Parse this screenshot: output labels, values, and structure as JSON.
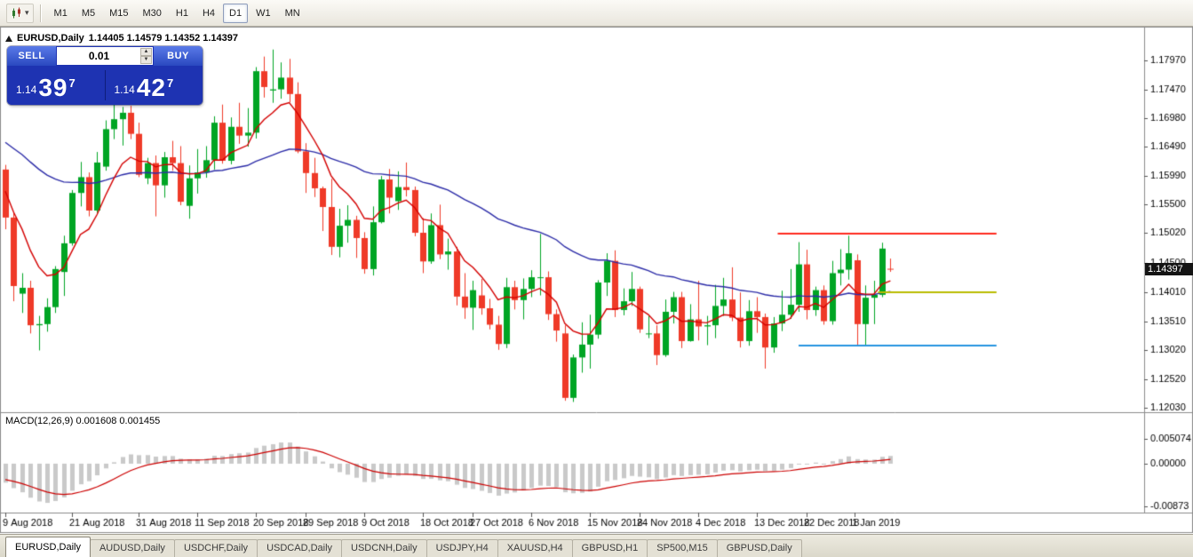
{
  "toolbar": {
    "timeframes": [
      "M1",
      "M5",
      "M15",
      "M30",
      "H1",
      "H4",
      "D1",
      "W1",
      "MN"
    ],
    "active_timeframe": "D1",
    "chart_type_icon": "candlestick-chart",
    "dropdown_icon": "chevron-down"
  },
  "chart_header": {
    "symbol_period": "EURUSD,Daily",
    "ohlc": "1.14405 1.14579 1.14352 1.14397"
  },
  "one_click": {
    "sell_label": "SELL",
    "buy_label": "BUY",
    "volume": "0.01",
    "bid": {
      "small": "1.14",
      "big": "39",
      "sup": "7"
    },
    "ask": {
      "small": "1.14",
      "big": "42",
      "sup": "7"
    }
  },
  "price_axis": {
    "labels": [
      "1.17970",
      "1.17470",
      "1.16980",
      "1.16490",
      "1.15990",
      "1.15500",
      "1.15020",
      "1.14500",
      "1.14010",
      "1.13510",
      "1.13020",
      "1.12520",
      "1.12030"
    ],
    "current_price": "1.14397"
  },
  "macd_panel": {
    "label": "MACD(12,26,9) 0.001608 0.001455",
    "axis_labels": [
      "0.005074",
      "0.00000",
      "-0.00873"
    ]
  },
  "time_axis": {
    "labels": [
      {
        "text": "9 Aug 2018",
        "bar": 0
      },
      {
        "text": "21 Aug 2018",
        "bar": 8
      },
      {
        "text": "31 Aug 2018",
        "bar": 16
      },
      {
        "text": "11 Sep 2018",
        "bar": 23
      },
      {
        "text": "20 Sep 2018",
        "bar": 30
      },
      {
        "text": "29 Sep 2018",
        "bar": 36
      },
      {
        "text": "9 Oct 2018",
        "bar": 43
      },
      {
        "text": "18 Oct 2018",
        "bar": 50
      },
      {
        "text": "27 Oct 2018",
        "bar": 56
      },
      {
        "text": "6 Nov 2018",
        "bar": 63
      },
      {
        "text": "15 Nov 2018",
        "bar": 70
      },
      {
        "text": "24 Nov 2018",
        "bar": 76
      },
      {
        "text": "4 Dec 2018",
        "bar": 83
      },
      {
        "text": "13 Dec 2018",
        "bar": 90
      },
      {
        "text": "22 Dec 2018",
        "bar": 96
      },
      {
        "text": "1 Jan 2019",
        "bar": 101.7
      }
    ]
  },
  "tab_bar": {
    "tabs": [
      "EURUSD,Daily",
      "AUDUSD,Daily",
      "USDCHF,Daily",
      "USDCAD,Daily",
      "USDCNH,Daily",
      "USDJPY,H4",
      "XAUUSD,H4",
      "GBPUSD,H1",
      "SP500,M15",
      "GBPUSD,Daily"
    ],
    "active_index": 0
  },
  "chart_data": {
    "type": "candlestick",
    "symbol": "EURUSD",
    "timeframe": "Daily",
    "last_ohlc": {
      "open": 1.14405,
      "high": 1.14579,
      "low": 1.14352,
      "close": 1.14397
    },
    "y_range": {
      "top": 1.1845,
      "bottom": 1.1197
    },
    "macd_range": {
      "max": 0.005074,
      "min": -0.00873
    },
    "macd_params": [
      12,
      26,
      9
    ],
    "colors": {
      "bull": "#00A524",
      "bear": "#EF3A28",
      "ma_fast": "#D40000",
      "ma_slow": "#2C2CA8",
      "histogram": "#C9C9C9",
      "signal": "#CC0000",
      "axis_text": "#000000",
      "frame": "#8C8C8C"
    },
    "overlays": {
      "ma_fast_period": 8,
      "ma_slow_period": 45,
      "hlines": [
        {
          "price": 1.15,
          "bar_start": 92.5,
          "bar_end": 118.7,
          "color": "#FF2A1E"
        },
        {
          "price": 1.1401,
          "bar_start": 104.5,
          "bar_end": 118.7,
          "color": "#B9BB00"
        },
        {
          "price": 1.131,
          "bar_start": 95.0,
          "bar_end": 118.7,
          "color": "#2694E0"
        }
      ]
    },
    "candles": [
      [
        1.161,
        1.1618,
        1.1508,
        1.1528
      ],
      [
        1.1528,
        1.1537,
        1.1385,
        1.1411
      ],
      [
        1.1398,
        1.1433,
        1.1365,
        1.1408
      ],
      [
        1.1408,
        1.142,
        1.133,
        1.1344
      ],
      [
        1.1344,
        1.136,
        1.1301,
        1.1346
      ],
      [
        1.1346,
        1.139,
        1.1333,
        1.1375
      ],
      [
        1.1375,
        1.1445,
        1.1365,
        1.144
      ],
      [
        1.1435,
        1.1497,
        1.1394,
        1.1484
      ],
      [
        1.1484,
        1.1575,
        1.148,
        1.157
      ],
      [
        1.157,
        1.1623,
        1.1547,
        1.1597
      ],
      [
        1.1597,
        1.1605,
        1.153,
        1.154
      ],
      [
        1.154,
        1.164,
        1.1536,
        1.1622
      ],
      [
        1.1615,
        1.1694,
        1.1608,
        1.1679
      ],
      [
        1.1679,
        1.1734,
        1.1662,
        1.1696
      ],
      [
        1.1696,
        1.1717,
        1.1651,
        1.1707
      ],
      [
        1.1707,
        1.1719,
        1.1662,
        1.1671
      ],
      [
        1.1671,
        1.169,
        1.1597,
        1.1601
      ],
      [
        1.1595,
        1.163,
        1.1585,
        1.1621
      ],
      [
        1.1621,
        1.1634,
        1.153,
        1.1583
      ],
      [
        1.1583,
        1.164,
        1.1562,
        1.1631
      ],
      [
        1.1631,
        1.1659,
        1.1608,
        1.1621
      ],
      [
        1.1621,
        1.165,
        1.1549,
        1.1555
      ],
      [
        1.1548,
        1.1617,
        1.1526,
        1.1595
      ],
      [
        1.1595,
        1.1645,
        1.1569,
        1.1605
      ],
      [
        1.1605,
        1.165,
        1.1596,
        1.1626
      ],
      [
        1.1626,
        1.1701,
        1.161,
        1.169
      ],
      [
        1.169,
        1.1721,
        1.162,
        1.1625
      ],
      [
        1.1625,
        1.1699,
        1.1619,
        1.1683
      ],
      [
        1.1683,
        1.1724,
        1.1654,
        1.1668
      ],
      [
        1.1668,
        1.1715,
        1.1649,
        1.1673
      ],
      [
        1.1673,
        1.1785,
        1.1663,
        1.1778
      ],
      [
        1.1778,
        1.1803,
        1.1733,
        1.1751
      ],
      [
        1.1745,
        1.1815,
        1.1724,
        1.1747
      ],
      [
        1.1747,
        1.1793,
        1.1731,
        1.1767
      ],
      [
        1.1767,
        1.1799,
        1.1725,
        1.1739
      ],
      [
        1.1739,
        1.1759,
        1.1638,
        1.1641
      ],
      [
        1.1641,
        1.1655,
        1.157,
        1.1604
      ],
      [
        1.1604,
        1.163,
        1.1563,
        1.1578
      ],
      [
        1.1578,
        1.1581,
        1.1505,
        1.1546
      ],
      [
        1.1546,
        1.1594,
        1.1464,
        1.1478
      ],
      [
        1.1478,
        1.1543,
        1.146,
        1.1514
      ],
      [
        1.1514,
        1.1549,
        1.1485,
        1.1524
      ],
      [
        1.1524,
        1.1531,
        1.1459,
        1.1493
      ],
      [
        1.1493,
        1.1503,
        1.1432,
        1.144
      ],
      [
        1.144,
        1.1547,
        1.1429,
        1.152
      ],
      [
        1.152,
        1.1599,
        1.1518,
        1.1593
      ],
      [
        1.1593,
        1.1611,
        1.1535,
        1.1562
      ],
      [
        1.1556,
        1.1607,
        1.1541,
        1.158
      ],
      [
        1.158,
        1.1622,
        1.1564,
        1.1575
      ],
      [
        1.1575,
        1.1581,
        1.1496,
        1.1502
      ],
      [
        1.1502,
        1.1527,
        1.1433,
        1.1453
      ],
      [
        1.1453,
        1.1535,
        1.1449,
        1.1515
      ],
      [
        1.1515,
        1.155,
        1.1457,
        1.1465
      ],
      [
        1.1465,
        1.1492,
        1.1439,
        1.147
      ],
      [
        1.147,
        1.1478,
        1.1378,
        1.1393
      ],
      [
        1.1393,
        1.1433,
        1.1355,
        1.1374
      ],
      [
        1.1374,
        1.142,
        1.1336,
        1.1404
      ],
      [
        1.1395,
        1.1423,
        1.1362,
        1.1373
      ],
      [
        1.1373,
        1.1389,
        1.1337,
        1.1345
      ],
      [
        1.1345,
        1.136,
        1.1302,
        1.1312
      ],
      [
        1.1312,
        1.1425,
        1.1305,
        1.1409
      ],
      [
        1.1409,
        1.142,
        1.1371,
        1.1387
      ],
      [
        1.1387,
        1.1424,
        1.1354,
        1.1406
      ],
      [
        1.1406,
        1.1438,
        1.1392,
        1.1426
      ],
      [
        1.1426,
        1.15,
        1.1395,
        1.1426
      ],
      [
        1.1426,
        1.1436,
        1.1353,
        1.1363
      ],
      [
        1.1363,
        1.1371,
        1.1316,
        1.1335
      ],
      [
        1.133,
        1.1344,
        1.1215,
        1.122
      ],
      [
        1.122,
        1.1294,
        1.1213,
        1.1289
      ],
      [
        1.1289,
        1.1349,
        1.1263,
        1.1311
      ],
      [
        1.1311,
        1.1362,
        1.127,
        1.1328
      ],
      [
        1.1328,
        1.1421,
        1.1321,
        1.1417
      ],
      [
        1.1417,
        1.1467,
        1.1394,
        1.1454
      ],
      [
        1.1454,
        1.1472,
        1.1358,
        1.137
      ],
      [
        1.137,
        1.1407,
        1.1361,
        1.1385
      ],
      [
        1.1385,
        1.1435,
        1.1377,
        1.1406
      ],
      [
        1.1406,
        1.141,
        1.1331,
        1.1337
      ],
      [
        1.133,
        1.136,
        1.1322,
        1.133
      ],
      [
        1.133,
        1.1344,
        1.1276,
        1.1293
      ],
      [
        1.1293,
        1.1388,
        1.129,
        1.1367
      ],
      [
        1.1367,
        1.1401,
        1.1347,
        1.1392
      ],
      [
        1.1392,
        1.1401,
        1.1305,
        1.1317
      ],
      [
        1.1317,
        1.138,
        1.1316,
        1.1354
      ],
      [
        1.1354,
        1.142,
        1.1318,
        1.1342
      ],
      [
        1.1342,
        1.136,
        1.131,
        1.1344
      ],
      [
        1.1344,
        1.1413,
        1.1322,
        1.1377
      ],
      [
        1.1377,
        1.1425,
        1.136,
        1.1388
      ],
      [
        1.1388,
        1.1443,
        1.1351,
        1.1357
      ],
      [
        1.1357,
        1.14,
        1.1306,
        1.1317
      ],
      [
        1.1317,
        1.1387,
        1.1309,
        1.1368
      ],
      [
        1.1368,
        1.1392,
        1.1331,
        1.1358
      ],
      [
        1.1358,
        1.1364,
        1.127,
        1.1306
      ],
      [
        1.1306,
        1.1358,
        1.1297,
        1.1347
      ],
      [
        1.1347,
        1.1403,
        1.1334,
        1.1362
      ],
      [
        1.1362,
        1.144,
        1.1355,
        1.1379
      ],
      [
        1.1379,
        1.1486,
        1.1367,
        1.1448
      ],
      [
        1.1448,
        1.1473,
        1.1354,
        1.137
      ],
      [
        1.137,
        1.141,
        1.136,
        1.1404
      ],
      [
        1.1404,
        1.1412,
        1.1345,
        1.1351
      ],
      [
        1.1351,
        1.1454,
        1.1345,
        1.1433
      ],
      [
        1.1433,
        1.1474,
        1.1412,
        1.1439
      ],
      [
        1.1439,
        1.1497,
        1.1422,
        1.1467
      ],
      [
        1.1455,
        1.1465,
        1.131,
        1.1346
      ],
      [
        1.1346,
        1.1412,
        1.1309,
        1.1391
      ],
      [
        1.1391,
        1.142,
        1.1346,
        1.1396
      ],
      [
        1.1396,
        1.1485,
        1.1392,
        1.1475
      ],
      [
        1.14405,
        1.14579,
        1.14352,
        1.14397
      ]
    ]
  }
}
